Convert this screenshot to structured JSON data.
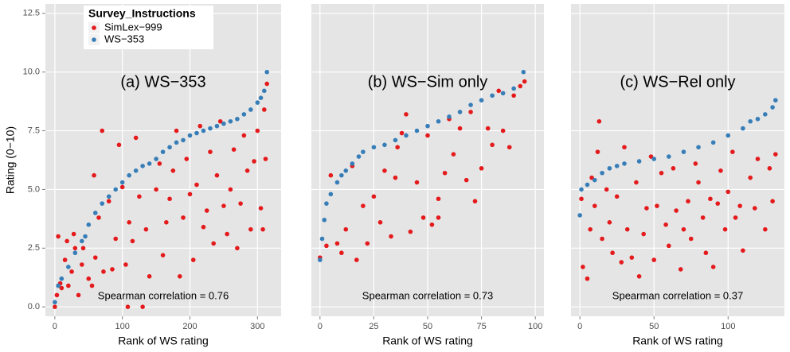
{
  "chart_data": [
    {
      "type": "scatter",
      "title": "(a) WS−353",
      "annotation": "Spearman correlation = 0.76",
      "x_label": "Rank of WS rating",
      "y_label": "Rating (0−10)",
      "legend_title": "Survey_Instructions",
      "legend_position": "top-left",
      "grid": true,
      "xlim": [
        -14,
        335
      ],
      "xticks": [
        0,
        100,
        200,
        300
      ],
      "ylim": [
        -0.4,
        12.9
      ],
      "yticks": [
        {
          "value": 0,
          "label": "0.0"
        },
        2.5,
        {
          "value": 5,
          "label": "5.0"
        },
        7.5,
        {
          "value": 10,
          "label": "10.0"
        },
        12.5
      ],
      "series": [
        {
          "name": "SimLex−999",
          "color": "#e41a1c",
          "x": [
            0,
            3,
            5,
            8,
            10,
            15,
            18,
            20,
            25,
            28,
            30,
            35,
            40,
            42,
            50,
            55,
            58,
            60,
            65,
            70,
            72,
            80,
            85,
            90,
            95,
            100,
            105,
            108,
            110,
            115,
            120,
            125,
            130,
            135,
            140,
            150,
            155,
            160,
            165,
            170,
            175,
            180,
            185,
            190,
            195,
            200,
            205,
            210,
            215,
            220,
            225,
            230,
            235,
            240,
            245,
            250,
            255,
            260,
            265,
            270,
            275,
            280,
            285,
            290,
            295,
            300,
            305,
            310,
            314,
            312,
            308
          ],
          "values": [
            0,
            0.5,
            3,
            1,
            0.8,
            2,
            2.8,
            0.9,
            1.5,
            3.1,
            2.5,
            0.5,
            1.8,
            2.5,
            1.2,
            0.9,
            5.6,
            2.1,
            3.8,
            7.5,
            1.5,
            4.5,
            1.6,
            2.9,
            6.9,
            5.1,
            1.8,
            0,
            3.6,
            2.8,
            7.2,
            4.7,
            0,
            3.3,
            1.3,
            5.0,
            6.1,
            2.2,
            3.6,
            4.6,
            5.8,
            7.5,
            1.3,
            3.8,
            6.3,
            4.8,
            2.0,
            5.2,
            7.7,
            3.4,
            4.1,
            6.6,
            2.7,
            5.6,
            7.9,
            4.3,
            3.1,
            5.0,
            6.7,
            2.5,
            4.4,
            7.3,
            5.8,
            3.3,
            6.2,
            7.5,
            4.2,
            8.4,
            9.5,
            6.3,
            3.3
          ]
        },
        {
          "name": "WS−353",
          "color": "#377eb8",
          "x": [
            0,
            5,
            10,
            20,
            30,
            40,
            45,
            50,
            60,
            70,
            80,
            90,
            100,
            110,
            120,
            130,
            140,
            150,
            160,
            170,
            180,
            190,
            200,
            210,
            220,
            230,
            240,
            250,
            260,
            270,
            280,
            290,
            300,
            305,
            310,
            314
          ],
          "values": [
            0.2,
            0.9,
            1.2,
            1.7,
            2.3,
            2.8,
            3.0,
            3.5,
            4.0,
            4.4,
            4.7,
            5.0,
            5.3,
            5.6,
            5.8,
            6.0,
            6.1,
            6.3,
            6.6,
            6.8,
            7.0,
            7.1,
            7.3,
            7.4,
            7.5,
            7.6,
            7.7,
            7.8,
            7.9,
            8.0,
            8.2,
            8.4,
            8.7,
            8.9,
            9.2,
            10.0
          ]
        }
      ]
    },
    {
      "type": "scatter",
      "title": "(b) WS−Sim only",
      "annotation": "Spearman correlation = 0.73",
      "x_label": "Rank of WS rating",
      "grid": true,
      "xlim": [
        -4,
        104
      ],
      "xticks": [
        0,
        25,
        50,
        75,
        100
      ],
      "ylim": [
        -0.4,
        12.9
      ],
      "yticks": [
        0,
        2.5,
        5,
        7.5,
        10,
        12.5
      ],
      "series": [
        {
          "color": "#e41a1c",
          "x": [
            0,
            3,
            5,
            8,
            10,
            12,
            15,
            17,
            20,
            22,
            25,
            28,
            30,
            33,
            35,
            38,
            40,
            42,
            45,
            48,
            50,
            52,
            55,
            58,
            60,
            62,
            65,
            68,
            70,
            72,
            75,
            78,
            80,
            83,
            85,
            88,
            90,
            93,
            95,
            55,
            36
          ],
          "values": [
            2.1,
            2.6,
            5.6,
            2.7,
            2.3,
            3.3,
            6.0,
            2.0,
            4.3,
            2.7,
            4.7,
            3.6,
            5.8,
            3.0,
            5.5,
            7.4,
            8.2,
            3.2,
            5.3,
            3.8,
            7.3,
            3.5,
            4.6,
            5.7,
            8.0,
            6.5,
            7.6,
            5.4,
            8.3,
            4.5,
            5.9,
            7.6,
            6.9,
            9.2,
            7.5,
            6.8,
            9.0,
            9.4,
            9.6,
            3.8,
            6.8
          ]
        },
        {
          "color": "#377eb8",
          "x": [
            0,
            1,
            2,
            3,
            5,
            8,
            10,
            12,
            15,
            18,
            20,
            25,
            30,
            35,
            40,
            45,
            50,
            55,
            60,
            65,
            70,
            75,
            80,
            85,
            90,
            94.5
          ],
          "values": [
            2.0,
            2.9,
            3.7,
            4.4,
            4.8,
            5.3,
            5.6,
            5.8,
            6.1,
            6.4,
            6.6,
            6.8,
            6.9,
            7.1,
            7.3,
            7.5,
            7.7,
            7.9,
            8.1,
            8.3,
            8.6,
            8.8,
            9.0,
            9.1,
            9.3,
            10.0
          ]
        }
      ]
    },
    {
      "type": "scatter",
      "title": "(c) WS−Rel only",
      "annotation": "Spearman correlation = 0.37",
      "x_label": "Rank of WS rating",
      "grid": true,
      "xlim": [
        -6,
        138
      ],
      "xticks": [
        0,
        50,
        100
      ],
      "ylim": [
        -0.4,
        12.9
      ],
      "yticks": [
        0,
        2.5,
        5,
        7.5,
        10,
        12.5
      ],
      "series": [
        {
          "color": "#e41a1c",
          "x": [
            1,
            2,
            5,
            7,
            8,
            10,
            12,
            13,
            15,
            18,
            20,
            22,
            25,
            28,
            30,
            32,
            35,
            38,
            40,
            43,
            45,
            48,
            50,
            52,
            55,
            58,
            60,
            63,
            65,
            68,
            70,
            73,
            75,
            78,
            80,
            83,
            85,
            88,
            90,
            93,
            95,
            98,
            100,
            103,
            105,
            108,
            110,
            115,
            118,
            120,
            125,
            128,
            130,
            132
          ],
          "values": [
            4.6,
            1.7,
            1.2,
            3.3,
            5.5,
            4.3,
            6.6,
            7.9,
            2.9,
            5.0,
            3.6,
            2.3,
            4.7,
            1.9,
            6.8,
            3.3,
            2.1,
            5.3,
            1.3,
            3.1,
            4.2,
            6.4,
            2.0,
            4.3,
            5.7,
            3.5,
            2.6,
            5.9,
            4.1,
            1.6,
            3.3,
            4.5,
            2.9,
            6.1,
            5.3,
            3.8,
            2.3,
            4.6,
            1.7,
            4.4,
            5.8,
            3.3,
            4.9,
            6.6,
            3.8,
            4.3,
            2.4,
            5.5,
            4.2,
            6.3,
            3.3,
            5.9,
            4.5,
            6.5
          ]
        },
        {
          "color": "#377eb8",
          "x": [
            0,
            1,
            5,
            10,
            15,
            20,
            25,
            30,
            40,
            50,
            60,
            70,
            80,
            90,
            100,
            110,
            115,
            120,
            125,
            130,
            132
          ],
          "values": [
            3.9,
            5.0,
            5.2,
            5.4,
            5.7,
            5.9,
            6.0,
            6.1,
            6.2,
            6.3,
            6.4,
            6.6,
            6.8,
            7.0,
            7.3,
            7.6,
            7.9,
            8.0,
            8.2,
            8.5,
            8.8
          ]
        }
      ]
    }
  ]
}
